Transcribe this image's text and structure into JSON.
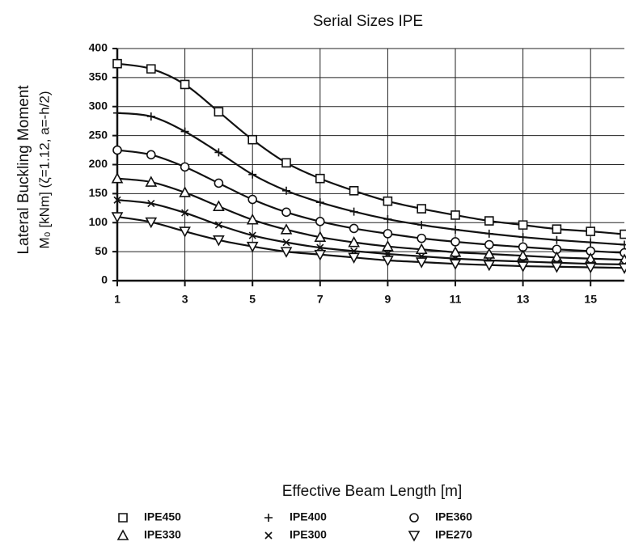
{
  "chart_data": {
    "type": "line",
    "title": "Serial Sizes IPE",
    "xlabel": "Effective Beam Length [m]",
    "ylabel": [
      "Lateral  Buckling  Moment",
      "M₀ [kNm] (ζ=1.12, a=-h/2)"
    ],
    "x": [
      1,
      2,
      3,
      4,
      5,
      6,
      7,
      8,
      9,
      10,
      11,
      12,
      13,
      14,
      15,
      16
    ],
    "series": [
      {
        "name": "IPE450",
        "color": "#111111",
        "marker": "square",
        "values": [
          374,
          365,
          338,
          291,
          243,
          203,
          176,
          155,
          137,
          124,
          113,
          103,
          96,
          89,
          85,
          80
        ]
      },
      {
        "name": "IPE400",
        "color": "#111111",
        "marker": "plus",
        "values": [
          289,
          283,
          257,
          221,
          183,
          155,
          135,
          119,
          106,
          96,
          88,
          81,
          75,
          70,
          66,
          62
        ]
      },
      {
        "name": "IPE360",
        "color": "#111111",
        "marker": "circle",
        "values": [
          225,
          217,
          196,
          168,
          140,
          118,
          102,
          90,
          81,
          73,
          67,
          62,
          58,
          54,
          51,
          48
        ]
      },
      {
        "name": "IPE330",
        "color": "#111111",
        "marker": "triangle-up",
        "values": [
          176,
          170,
          152,
          128,
          105,
          88,
          75,
          66,
          59,
          54,
          49,
          46,
          43,
          40,
          38,
          36
        ]
      },
      {
        "name": "IPE300",
        "color": "#111111",
        "marker": "cross",
        "values": [
          139,
          133,
          117,
          96,
          78,
          66,
          57,
          51,
          46,
          42,
          38,
          35,
          33,
          31,
          29,
          28
        ]
      },
      {
        "name": "IPE270",
        "color": "#111111",
        "marker": "triangle-down",
        "values": [
          110,
          101,
          85,
          70,
          59,
          50,
          45,
          40,
          35,
          32,
          29,
          27,
          25,
          24,
          23,
          22
        ]
      }
    ],
    "xlim": [
      1,
      16
    ],
    "xticks": [
      1,
      3,
      5,
      7,
      9,
      11,
      13,
      15
    ],
    "ylim": [
      0,
      400
    ],
    "yticks": [
      0,
      50,
      100,
      150,
      200,
      250,
      300,
      350,
      400
    ],
    "grid": true
  }
}
